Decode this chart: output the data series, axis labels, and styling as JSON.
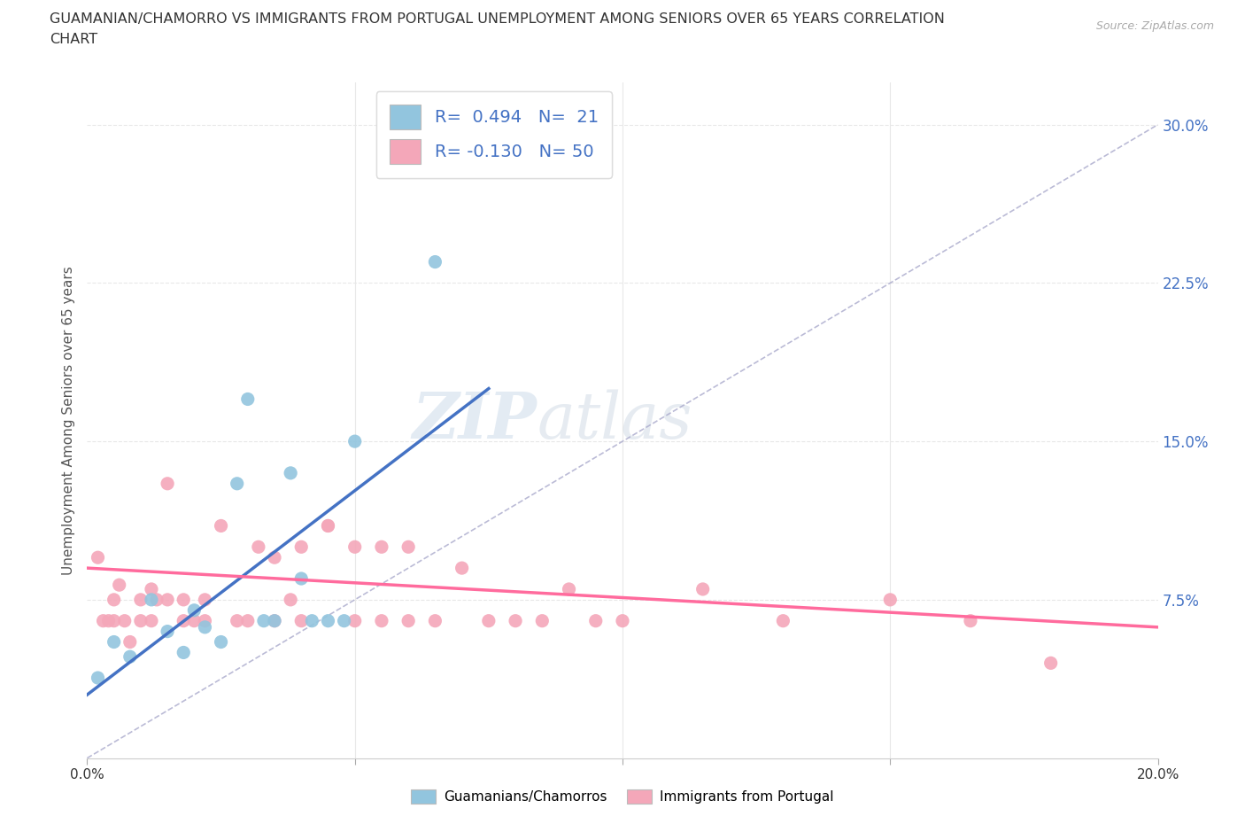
{
  "title": "GUAMANIAN/CHAMORRO VS IMMIGRANTS FROM PORTUGAL UNEMPLOYMENT AMONG SENIORS OVER 65 YEARS CORRELATION\nCHART",
  "source": "Source: ZipAtlas.com",
  "xlabel": "",
  "ylabel": "Unemployment Among Seniors over 65 years",
  "xlim": [
    0.0,
    0.2
  ],
  "ylim": [
    0.0,
    0.32
  ],
  "xticks": [
    0.0,
    0.05,
    0.1,
    0.15,
    0.2
  ],
  "xtick_labels": [
    "0.0%",
    "",
    "",
    "",
    "20.0%"
  ],
  "yticks": [
    0.0,
    0.075,
    0.15,
    0.225,
    0.3
  ],
  "ytick_labels_right": [
    "",
    "7.5%",
    "15.0%",
    "22.5%",
    "30.0%"
  ],
  "blue_color": "#92C5DE",
  "pink_color": "#F4A7B9",
  "blue_line_color": "#4472C4",
  "pink_line_color": "#FF6B9D",
  "diag_line_color": "#AAAACC",
  "R_blue": 0.494,
  "N_blue": 21,
  "R_pink": -0.13,
  "N_pink": 50,
  "blue_points": [
    [
      0.002,
      0.038
    ],
    [
      0.005,
      0.055
    ],
    [
      0.008,
      0.048
    ],
    [
      0.012,
      0.075
    ],
    [
      0.015,
      0.06
    ],
    [
      0.018,
      0.05
    ],
    [
      0.02,
      0.07
    ],
    [
      0.022,
      0.062
    ],
    [
      0.025,
      0.055
    ],
    [
      0.028,
      0.13
    ],
    [
      0.03,
      0.17
    ],
    [
      0.033,
      0.065
    ],
    [
      0.035,
      0.065
    ],
    [
      0.038,
      0.135
    ],
    [
      0.04,
      0.085
    ],
    [
      0.042,
      0.065
    ],
    [
      0.045,
      0.065
    ],
    [
      0.048,
      0.065
    ],
    [
      0.05,
      0.15
    ],
    [
      0.065,
      0.235
    ],
    [
      0.075,
      0.285
    ]
  ],
  "pink_points": [
    [
      0.002,
      0.095
    ],
    [
      0.003,
      0.065
    ],
    [
      0.004,
      0.065
    ],
    [
      0.005,
      0.065
    ],
    [
      0.005,
      0.075
    ],
    [
      0.006,
      0.082
    ],
    [
      0.007,
      0.065
    ],
    [
      0.008,
      0.055
    ],
    [
      0.01,
      0.065
    ],
    [
      0.01,
      0.075
    ],
    [
      0.012,
      0.065
    ],
    [
      0.012,
      0.08
    ],
    [
      0.013,
      0.075
    ],
    [
      0.015,
      0.13
    ],
    [
      0.015,
      0.075
    ],
    [
      0.018,
      0.065
    ],
    [
      0.018,
      0.075
    ],
    [
      0.02,
      0.065
    ],
    [
      0.022,
      0.075
    ],
    [
      0.022,
      0.065
    ],
    [
      0.025,
      0.11
    ],
    [
      0.028,
      0.065
    ],
    [
      0.03,
      0.065
    ],
    [
      0.032,
      0.1
    ],
    [
      0.035,
      0.065
    ],
    [
      0.035,
      0.095
    ],
    [
      0.038,
      0.075
    ],
    [
      0.04,
      0.065
    ],
    [
      0.04,
      0.1
    ],
    [
      0.045,
      0.11
    ],
    [
      0.045,
      0.11
    ],
    [
      0.05,
      0.1
    ],
    [
      0.05,
      0.065
    ],
    [
      0.055,
      0.1
    ],
    [
      0.055,
      0.065
    ],
    [
      0.06,
      0.065
    ],
    [
      0.06,
      0.1
    ],
    [
      0.065,
      0.065
    ],
    [
      0.07,
      0.09
    ],
    [
      0.075,
      0.065
    ],
    [
      0.08,
      0.065
    ],
    [
      0.085,
      0.065
    ],
    [
      0.09,
      0.08
    ],
    [
      0.095,
      0.065
    ],
    [
      0.1,
      0.065
    ],
    [
      0.115,
      0.08
    ],
    [
      0.13,
      0.065
    ],
    [
      0.15,
      0.075
    ],
    [
      0.165,
      0.065
    ],
    [
      0.18,
      0.045
    ]
  ],
  "blue_line": [
    [
      0.0,
      0.03
    ],
    [
      0.075,
      0.175
    ]
  ],
  "pink_line": [
    [
      0.0,
      0.09
    ],
    [
      0.2,
      0.062
    ]
  ],
  "diag_line": [
    [
      0.0,
      0.0
    ],
    [
      0.2,
      0.3
    ]
  ],
  "watermark_zip": "ZIP",
  "watermark_atlas": "atlas",
  "background_color": "#FFFFFF",
  "grid_color": "#E8E8E8"
}
